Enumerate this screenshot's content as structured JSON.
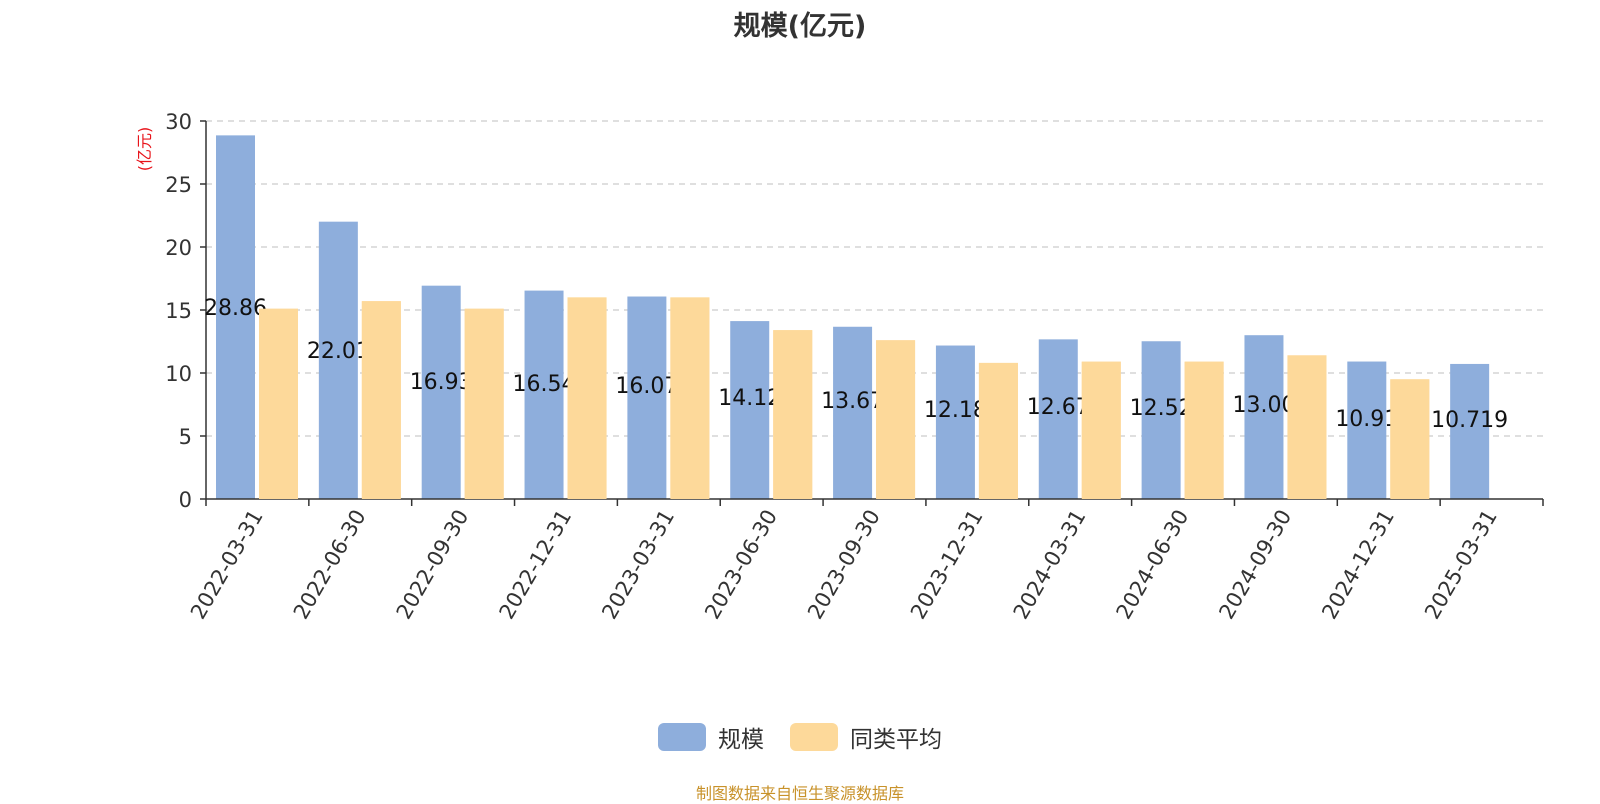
{
  "title": "规模(亿元)",
  "source": "制图数据来自恒生聚源数据库",
  "legend": {
    "item1": "规模",
    "item2": "同类平均"
  },
  "colors": {
    "scale": "#8eaedc",
    "average": "#fdd99a",
    "axis_unit": "#e8141b",
    "source": "#c8922a",
    "grid": "#cccccc"
  },
  "chart_data": {
    "type": "bar",
    "ylabel": "(亿元)",
    "ylim": [
      0,
      30
    ],
    "yticks": [
      0,
      5,
      10,
      15,
      20,
      25,
      30
    ],
    "grid": true,
    "legend_position": "bottom-center",
    "categories": [
      "2022-03-31",
      "2022-06-30",
      "2022-09-30",
      "2022-12-31",
      "2023-03-31",
      "2023-06-30",
      "2023-09-30",
      "2023-12-31",
      "2024-03-31",
      "2024-06-30",
      "2024-09-30",
      "2024-12-31",
      "2025-03-31"
    ],
    "series": [
      {
        "name": "规模",
        "values": [
          28.86,
          22.01,
          16.93,
          16.54,
          16.07,
          14.12,
          13.67,
          12.18,
          12.67,
          12.52,
          13.0,
          10.91,
          10.719
        ],
        "labels": [
          "28.86",
          "22.01",
          "16.93",
          "16.54",
          "16.07",
          "14.12",
          "13.67",
          "12.18",
          "12.67",
          "12.52",
          "13.00",
          "10.91",
          "10.719"
        ]
      },
      {
        "name": "同类平均",
        "values": [
          15.1,
          15.7,
          15.1,
          16.0,
          16.0,
          13.4,
          12.6,
          10.8,
          10.9,
          10.9,
          11.4,
          9.5,
          null
        ]
      }
    ]
  }
}
